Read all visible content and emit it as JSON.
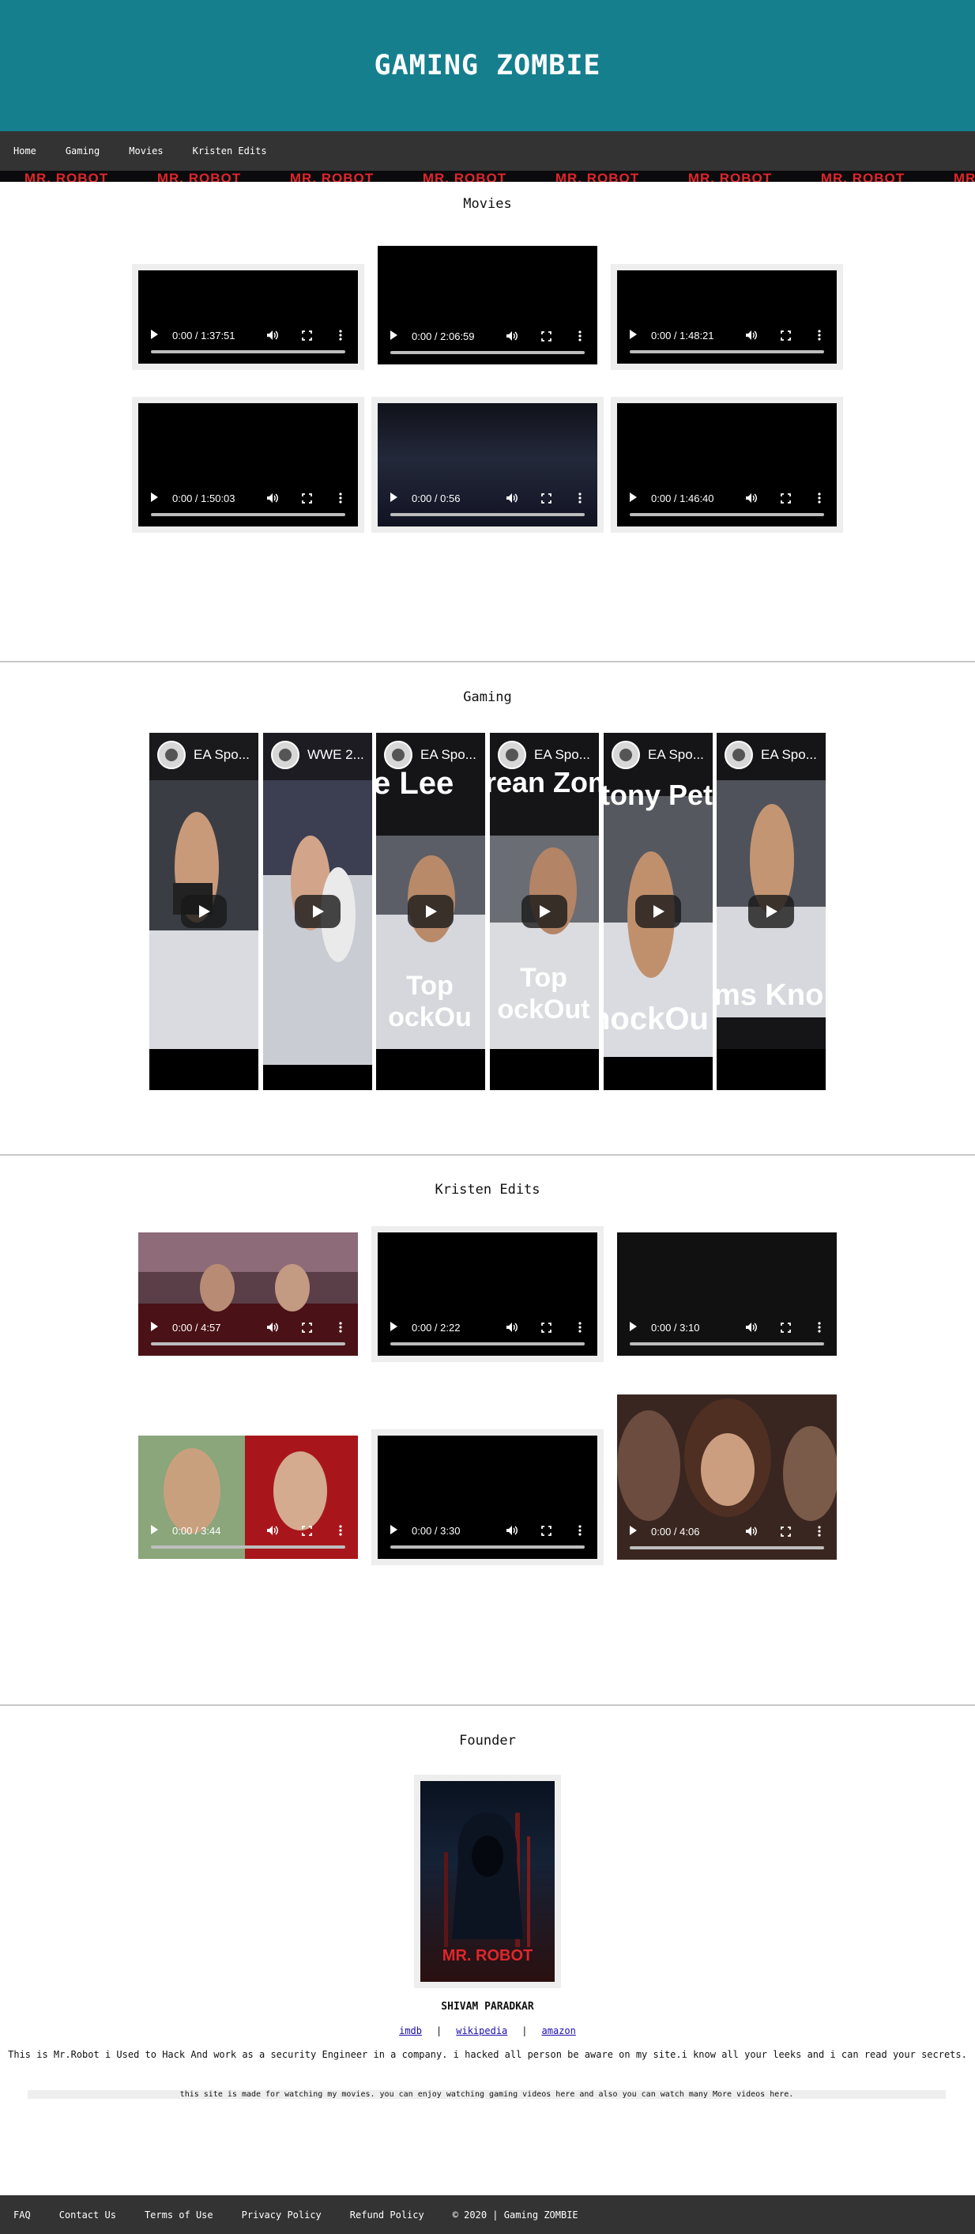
{
  "header": {
    "title": "GAMING ZOMBIE"
  },
  "nav": {
    "items": [
      "Home",
      "Gaming",
      "Movies",
      "Kristen Edits"
    ]
  },
  "banner": {
    "text": "MR. ROBOT"
  },
  "movies": {
    "title": "Movies",
    "videos": [
      {
        "time": "0:00 / 1:37:51"
      },
      {
        "time": "0:00 / 2:06:59"
      },
      {
        "time": "0:00 / 1:48:21"
      },
      {
        "time": "0:00 / 1:50:03"
      },
      {
        "time": "0:00 / 0:56"
      },
      {
        "time": "0:00 / 1:46:40"
      }
    ]
  },
  "gaming": {
    "title": "Gaming",
    "shorts": [
      {
        "title": "EA Spo..."
      },
      {
        "title": "WWE 2..."
      },
      {
        "title": "EA Spo...",
        "overlay_top": "e Lee",
        "overlay_bottom": "Top ockOu"
      },
      {
        "title": "EA Spo...",
        "overlay_top": "rean Zom",
        "overlay_bottom": "Top ockOut"
      },
      {
        "title": "EA Spo...",
        "overlay_top": "tony Pet",
        "overlay_bottom": "nockOu"
      },
      {
        "title": "EA Spo...",
        "overlay_bottom": "ms Kno"
      }
    ]
  },
  "kristen": {
    "title": "Kristen Edits",
    "videos": [
      {
        "time": "0:00 / 4:57"
      },
      {
        "time": "0:00 / 2:22"
      },
      {
        "time": "0:00 / 3:10"
      },
      {
        "time": "0:00 / 3:44"
      },
      {
        "time": "0:00 / 3:30"
      },
      {
        "time": "0:00 / 4:06"
      }
    ]
  },
  "founder": {
    "title": "Founder",
    "poster_text": "MR. ROBOT",
    "name": "SHIVAM PARADKAR",
    "links": [
      "imdb",
      "wikipedia",
      "amazon"
    ],
    "bio": "This is Mr.Robot i Used to Hack And work as a security Engineer in a company. i hacked all person be aware on my site.i know all your leeks and i can read your secrets.",
    "note": "this site is made for watching my movies. you can enjoy watching gaming videos here and also you can watch many More videos here."
  },
  "footer": {
    "items": [
      "FAQ",
      "Contact Us",
      "Terms of Use",
      "Privacy Policy",
      "Refund Policy",
      "© 2020 | Gaming ZOMBIE"
    ]
  }
}
